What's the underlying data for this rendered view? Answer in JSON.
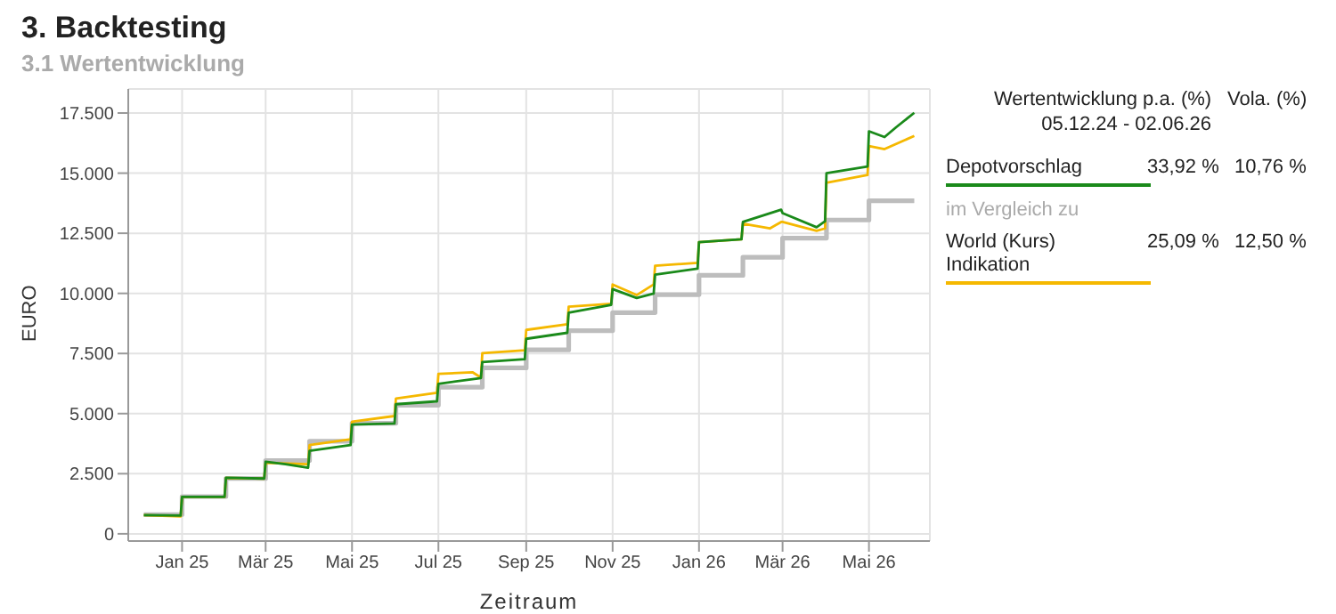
{
  "chart_data": {
    "type": "line",
    "title": "3. Backtesting",
    "subtitle": "3.1 Wertentwicklung",
    "xlabel": "Zeitraum",
    "ylabel": "EURO",
    "annotations": [
      "Wertentwicklung p.a. (%)",
      "Vola. (%)",
      "05.12.24 - 02.06.26",
      "33,92 %",
      "10,76 %",
      "im Vergleich zu",
      "25,09 %",
      "12,50 %"
    ],
    "xlim": [
      "2024-11-24",
      "2026-06-13"
    ],
    "xticks": [
      {
        "value": "2025-01-01",
        "label": "Jan 25"
      },
      {
        "value": "2025-03-01",
        "label": "Mär 25"
      },
      {
        "value": "2025-05-01",
        "label": "Mai 25"
      },
      {
        "value": "2025-07-01",
        "label": "Jul 25"
      },
      {
        "value": "2025-09-01",
        "label": "Sep 25"
      },
      {
        "value": "2025-11-01",
        "label": "Nov 25"
      },
      {
        "value": "2026-01-01",
        "label": "Jan 26"
      },
      {
        "value": "2026-03-01",
        "label": "Mär 26"
      },
      {
        "value": "2026-05-01",
        "label": "Mai 26"
      }
    ],
    "ylim": [
      -300,
      18500
    ],
    "yticks": [
      0,
      {
        "value": 2500,
        "label": "2.500"
      },
      {
        "value": 5000,
        "label": "5.000"
      },
      {
        "value": 7500,
        "label": "7.500"
      },
      {
        "value": 10000,
        "label": "10.000"
      },
      {
        "value": 12500,
        "label": "12.500"
      },
      {
        "value": 15000,
        "label": "15.000"
      },
      {
        "value": 17500,
        "label": "17.500"
      }
    ],
    "grid": true,
    "legend": "right",
    "marker": "none",
    "line_style": "solid",
    "series": [
      {
        "type": "step",
        "color": "#bdbdbd",
        "x": [
          "2024-12-05",
          "2025-01-01",
          "2025-02-01",
          "2025-03-01",
          "2025-04-01",
          "2025-05-01",
          "2025-06-01",
          "2025-07-01",
          "2025-08-01",
          "2025-09-01",
          "2025-10-01",
          "2025-11-01",
          "2025-12-01",
          "2026-01-01",
          "2026-02-01",
          "2026-03-01",
          "2026-04-01",
          "2026-05-01",
          "2026-06-02"
        ],
        "values": [
          800,
          1550,
          2300,
          3050,
          3850,
          4600,
          5350,
          6100,
          6900,
          7650,
          8450,
          9200,
          9950,
          10750,
          11500,
          12300,
          13050,
          13850,
          13850
        ]
      },
      {
        "name": "World (Kurs) Indikation",
        "color": "#f5b800",
        "x": [
          "2024-12-05",
          "2024-12-31",
          "2025-01-01",
          "2025-01-31",
          "2025-02-01",
          "2025-02-28",
          "2025-03-01",
          "2025-03-31",
          "2025-04-01",
          "2025-04-30",
          "2025-05-01",
          "2025-05-31",
          "2025-06-01",
          "2025-06-30",
          "2025-07-01",
          "2025-07-25",
          "2025-07-31",
          "2025-08-01",
          "2025-08-31",
          "2025-09-01",
          "2025-09-30",
          "2025-10-01",
          "2025-10-31",
          "2025-11-01",
          "2025-11-18",
          "2025-11-30",
          "2025-12-01",
          "2025-12-31",
          "2026-01-01",
          "2026-01-31",
          "2026-02-01",
          "2026-02-20",
          "2026-02-28",
          "2026-03-01",
          "2026-03-25",
          "2026-03-31",
          "2026-04-01",
          "2026-04-30",
          "2026-05-01",
          "2026-05-12",
          "2026-06-02"
        ],
        "values": [
          780,
          720,
          1540,
          1540,
          2320,
          2300,
          2950,
          2900,
          3690,
          3930,
          4660,
          4900,
          5630,
          5870,
          6650,
          6720,
          6500,
          7510,
          7630,
          8480,
          8720,
          9450,
          9570,
          10370,
          9930,
          10370,
          11150,
          11270,
          12130,
          12250,
          12900,
          12700,
          12970,
          12970,
          12600,
          12700,
          14600,
          14920,
          16130,
          16000,
          16550
        ]
      },
      {
        "name": "Depotvorschlag",
        "color": "#1a8a1a",
        "x": [
          "2024-12-05",
          "2024-12-31",
          "2025-01-01",
          "2025-01-31",
          "2025-02-01",
          "2025-02-28",
          "2025-03-01",
          "2025-03-15",
          "2025-03-31",
          "2025-04-01",
          "2025-04-30",
          "2025-05-01",
          "2025-05-31",
          "2025-06-01",
          "2025-06-30",
          "2025-07-01",
          "2025-07-31",
          "2025-08-01",
          "2025-08-31",
          "2025-09-01",
          "2025-09-30",
          "2025-10-01",
          "2025-10-31",
          "2025-11-01",
          "2025-11-18",
          "2025-11-30",
          "2025-12-01",
          "2025-12-31",
          "2026-01-01",
          "2026-01-31",
          "2026-02-01",
          "2026-02-28",
          "2026-03-01",
          "2026-03-25",
          "2026-03-31",
          "2026-04-01",
          "2026-04-30",
          "2026-05-01",
          "2026-05-12",
          "2026-05-20",
          "2026-06-02"
        ],
        "values": [
          780,
          760,
          1540,
          1540,
          2330,
          2300,
          3000,
          2900,
          2750,
          3450,
          3690,
          4540,
          4590,
          5390,
          5510,
          6240,
          6480,
          7140,
          7260,
          8110,
          8360,
          9200,
          9520,
          10180,
          9810,
          9990,
          10780,
          11030,
          12130,
          12250,
          12970,
          13480,
          13340,
          12750,
          13000,
          15000,
          15280,
          16740,
          16500,
          16900,
          17510
        ]
      }
    ]
  }
}
